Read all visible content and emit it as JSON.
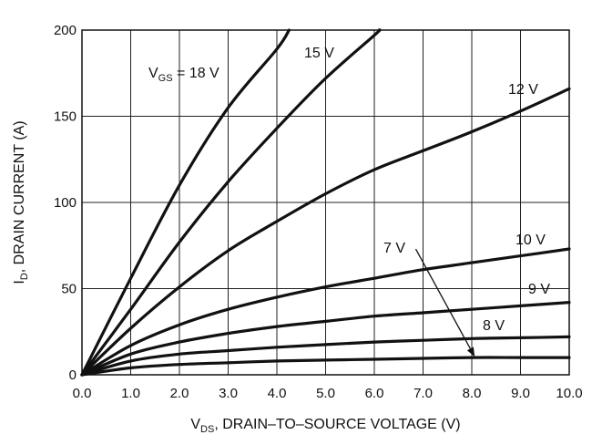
{
  "chart_data": {
    "type": "line",
    "xlabel": {
      "main": "V",
      "sub": "DS",
      "rest": ", DRAIN–TO–SOURCE VOLTAGE (V)"
    },
    "ylabel": {
      "main": "I",
      "sub": "D",
      "rest": ", DRAIN CURRENT (A)"
    },
    "xlim": [
      0,
      10
    ],
    "ylim": [
      0,
      200
    ],
    "x_ticks": [
      "0.0",
      "1.0",
      "2.0",
      "3.0",
      "4.0",
      "5.0",
      "6.0",
      "7.0",
      "8.0",
      "9.0",
      "10.0"
    ],
    "y_ticks": [
      "0",
      "50",
      "100",
      "150",
      "200"
    ],
    "grid": true,
    "series": [
      {
        "name": "V_GS = 18 V",
        "label": {
          "main": "V",
          "sub": "GS",
          "rest": " = 18 V"
        },
        "x": [
          0,
          1,
          2,
          3,
          4,
          4.25
        ],
        "y": [
          0,
          56,
          110,
          155,
          189,
          200
        ]
      },
      {
        "name": "15 V",
        "label": {
          "main": "15 V"
        },
        "x": [
          0,
          1,
          2,
          3,
          4,
          5,
          6,
          6.1
        ],
        "y": [
          0,
          38,
          77,
          112,
          143,
          172,
          197,
          200
        ]
      },
      {
        "name": "12 V",
        "label": {
          "main": "12 V"
        },
        "x": [
          0,
          1,
          2,
          3,
          4,
          5,
          6,
          7,
          8,
          9,
          10
        ],
        "y": [
          0,
          27,
          51,
          72,
          89,
          105,
          119,
          130,
          141,
          153,
          166
        ]
      },
      {
        "name": "10 V",
        "label": {
          "main": "10 V"
        },
        "x": [
          0,
          1,
          2,
          3,
          4,
          5,
          6,
          7,
          8,
          9,
          10
        ],
        "y": [
          0,
          17,
          29,
          38,
          45,
          51,
          56,
          61,
          65,
          69,
          73
        ]
      },
      {
        "name": "9 V",
        "label": {
          "main": "9 V"
        },
        "x": [
          0,
          1,
          2,
          3,
          4,
          5,
          6,
          7,
          8,
          9,
          10
        ],
        "y": [
          0,
          12,
          19,
          24,
          28,
          31,
          34,
          36,
          38,
          40,
          42
        ]
      },
      {
        "name": "8 V",
        "label": {
          "main": "8 V"
        },
        "x": [
          0,
          1,
          2,
          3,
          4,
          5,
          6,
          7,
          8,
          9,
          10
        ],
        "y": [
          0,
          8,
          12,
          14,
          16,
          17.5,
          19,
          20,
          21,
          21.5,
          22
        ]
      },
      {
        "name": "7 V",
        "label": {
          "main": "7 V"
        },
        "x": [
          0,
          1,
          2,
          3,
          4,
          5,
          6,
          7,
          8,
          9,
          10
        ],
        "y": [
          0,
          4,
          6,
          7,
          8,
          8.5,
          9,
          9.5,
          10,
          10,
          10
        ]
      }
    ],
    "annotation_arrow": {
      "from": [
        6.85,
        73
      ],
      "to": [
        8.05,
        11
      ]
    }
  }
}
